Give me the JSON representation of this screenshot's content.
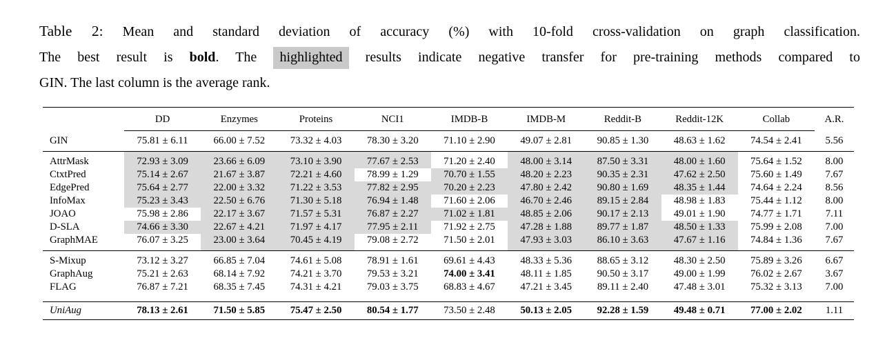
{
  "caption": {
    "lines": [
      [
        {
          "text": "Table 2:",
          "style": "label"
        },
        {
          "text": "  Mean and standard deviation of accuracy (%) with 10-fold cross-validation on graph classification.",
          "style": "normal"
        }
      ],
      [
        {
          "text": "The best result is ",
          "style": "normal"
        },
        {
          "text": "bold",
          "style": "bold"
        },
        {
          "text": ". The ",
          "style": "normal"
        },
        {
          "text": "highlighted",
          "style": "highlight"
        },
        {
          "text": " results indicate negative transfer for pre-training methods compared to",
          "style": "normal"
        }
      ],
      [
        {
          "text": "GIN. The last column is the average rank.",
          "style": "normal"
        }
      ]
    ]
  },
  "colors": {
    "cell_highlight": "#d9d9d9",
    "caption_highlight": "#c9c9c9"
  },
  "table": {
    "columns": [
      "DD",
      "Enzymes",
      "Proteins",
      "NCI1",
      "IMDB-B",
      "IMDB-M",
      "Reddit-B",
      "Reddit-12K",
      "Collab",
      "A.R."
    ],
    "groups": [
      {
        "id": "gin",
        "rows": [
          {
            "name": "GIN",
            "italic": false,
            "ar": "5.56",
            "cells": [
              {
                "v": "75.81 ± 6.11"
              },
              {
                "v": "66.00 ± 7.52"
              },
              {
                "v": "73.32 ± 4.03"
              },
              {
                "v": "78.30 ± 3.20"
              },
              {
                "v": "71.10 ± 2.90"
              },
              {
                "v": "49.07 ± 2.81"
              },
              {
                "v": "90.85 ± 1.30"
              },
              {
                "v": "48.63 ± 1.62"
              },
              {
                "v": "74.54 ± 2.41"
              }
            ]
          }
        ]
      },
      {
        "id": "pretrain",
        "rows": [
          {
            "name": "AttrMask",
            "italic": false,
            "ar": "8.00",
            "cells": [
              {
                "v": "72.93 ± 3.09",
                "hl": true
              },
              {
                "v": "23.66 ± 6.09",
                "hl": true
              },
              {
                "v": "73.10 ± 3.90",
                "hl": true
              },
              {
                "v": "77.67 ± 2.53",
                "hl": true
              },
              {
                "v": "71.20 ± 2.40"
              },
              {
                "v": "48.00 ± 3.14",
                "hl": true
              },
              {
                "v": "87.50 ± 3.31",
                "hl": true
              },
              {
                "v": "48.00 ± 1.60",
                "hl": true
              },
              {
                "v": "75.64 ± 1.52"
              }
            ]
          },
          {
            "name": "CtxtPred",
            "italic": false,
            "ar": "7.67",
            "cells": [
              {
                "v": "75.14 ± 2.67",
                "hl": true
              },
              {
                "v": "21.67 ± 3.87",
                "hl": true
              },
              {
                "v": "72.21 ± 4.60",
                "hl": true
              },
              {
                "v": "78.99 ± 1.29"
              },
              {
                "v": "70.70 ± 1.55",
                "hl": true
              },
              {
                "v": "48.20 ± 2.23",
                "hl": true
              },
              {
                "v": "90.35 ± 2.31",
                "hl": true
              },
              {
                "v": "47.62 ± 2.50",
                "hl": true
              },
              {
                "v": "75.60 ± 1.49"
              }
            ]
          },
          {
            "name": "EdgePred",
            "italic": false,
            "ar": "8.56",
            "cells": [
              {
                "v": "75.64 ± 2.77",
                "hl": true
              },
              {
                "v": "22.00 ± 3.32",
                "hl": true
              },
              {
                "v": "71.22 ± 3.53",
                "hl": true
              },
              {
                "v": "77.82 ± 2.95",
                "hl": true
              },
              {
                "v": "70.20 ± 2.23",
                "hl": true
              },
              {
                "v": "47.80 ± 2.42",
                "hl": true
              },
              {
                "v": "90.80 ± 1.69",
                "hl": true
              },
              {
                "v": "48.35 ± 1.44",
                "hl": true
              },
              {
                "v": "74.64 ± 2.24"
              }
            ]
          },
          {
            "name": "InfoMax",
            "italic": false,
            "ar": "8.00",
            "cells": [
              {
                "v": "75.23 ± 3.43",
                "hl": true
              },
              {
                "v": "22.50 ± 6.76",
                "hl": true
              },
              {
                "v": "71.30 ± 5.18",
                "hl": true
              },
              {
                "v": "76.94 ± 1.48",
                "hl": true
              },
              {
                "v": "71.60 ± 2.06"
              },
              {
                "v": "46.70 ± 2.46",
                "hl": true
              },
              {
                "v": "89.15 ± 2.84",
                "hl": true
              },
              {
                "v": "48.98 ± 1.83"
              },
              {
                "v": "75.44 ± 1.12"
              }
            ]
          },
          {
            "name": "JOAO",
            "italic": false,
            "ar": "7.11",
            "cells": [
              {
                "v": "75.98 ± 2.86"
              },
              {
                "v": "22.17 ± 3.67",
                "hl": true
              },
              {
                "v": "71.57 ± 5.31",
                "hl": true
              },
              {
                "v": "76.87 ± 2.27",
                "hl": true
              },
              {
                "v": "71.02 ± 1.81",
                "hl": true
              },
              {
                "v": "48.85 ± 2.06",
                "hl": true
              },
              {
                "v": "90.17 ± 2.13",
                "hl": true
              },
              {
                "v": "49.01 ± 1.90"
              },
              {
                "v": "74.77 ± 1.71"
              }
            ]
          },
          {
            "name": "D-SLA",
            "italic": false,
            "ar": "7.00",
            "cells": [
              {
                "v": "74.66 ± 3.30",
                "hl": true
              },
              {
                "v": "22.67 ± 4.21",
                "hl": true
              },
              {
                "v": "71.97 ± 4.17",
                "hl": true
              },
              {
                "v": "77.95 ± 2.11",
                "hl": true
              },
              {
                "v": "71.92 ± 2.75"
              },
              {
                "v": "47.28 ± 1.88",
                "hl": true
              },
              {
                "v": "89.77 ± 1.87",
                "hl": true
              },
              {
                "v": "48.50 ± 1.33",
                "hl": true
              },
              {
                "v": "75.99 ± 2.08"
              }
            ]
          },
          {
            "name": "GraphMAE",
            "italic": false,
            "ar": "7.67",
            "cells": [
              {
                "v": "76.07 ± 3.25"
              },
              {
                "v": "23.00 ± 3.64",
                "hl": true
              },
              {
                "v": "70.45 ± 4.19",
                "hl": true
              },
              {
                "v": "79.08 ± 2.72"
              },
              {
                "v": "71.50 ± 2.01"
              },
              {
                "v": "47.93 ± 3.03",
                "hl": true
              },
              {
                "v": "86.10 ± 3.63",
                "hl": true
              },
              {
                "v": "47.67 ± 1.16",
                "hl": true
              },
              {
                "v": "74.84 ± 1.36"
              }
            ]
          }
        ]
      },
      {
        "id": "aug",
        "rows": [
          {
            "name": "S-Mixup",
            "italic": false,
            "ar": "6.67",
            "cells": [
              {
                "v": "73.12 ± 3.27"
              },
              {
                "v": "66.85 ± 7.04"
              },
              {
                "v": "74.61 ± 5.08"
              },
              {
                "v": "78.91 ± 1.61"
              },
              {
                "v": "69.61 ± 4.43"
              },
              {
                "v": "48.33 ± 5.36"
              },
              {
                "v": "88.65 ± 3.12"
              },
              {
                "v": "48.30 ± 2.50"
              },
              {
                "v": "75.89 ± 3.26"
              }
            ]
          },
          {
            "name": "GraphAug",
            "italic": false,
            "ar": "3.67",
            "cells": [
              {
                "v": "75.21 ± 2.63"
              },
              {
                "v": "68.14 ± 7.92"
              },
              {
                "v": "74.21 ± 3.70"
              },
              {
                "v": "79.53 ± 3.21"
              },
              {
                "v": "74.00 ± 3.41",
                "b": true
              },
              {
                "v": "48.11 ± 1.85"
              },
              {
                "v": "90.50 ± 3.17"
              },
              {
                "v": "49.00 ± 1.99"
              },
              {
                "v": "76.02 ± 2.67"
              }
            ]
          },
          {
            "name": "FLAG",
            "italic": false,
            "ar": "7.00",
            "cells": [
              {
                "v": "76.87 ± 7.21"
              },
              {
                "v": "68.35 ± 7.45"
              },
              {
                "v": "74.31 ± 4.21"
              },
              {
                "v": "79.03 ± 3.75"
              },
              {
                "v": "68.83 ± 4.67"
              },
              {
                "v": "47.21 ± 3.45"
              },
              {
                "v": "89.11 ± 2.40"
              },
              {
                "v": "47.48 ± 3.01"
              },
              {
                "v": "75.32 ± 3.13"
              }
            ]
          }
        ]
      },
      {
        "id": "uniaug",
        "rows": [
          {
            "name": "UniAug",
            "italic": true,
            "ar": "1.11",
            "cells": [
              {
                "v": "78.13 ± 2.61",
                "b": true
              },
              {
                "v": "71.50 ± 5.85",
                "b": true
              },
              {
                "v": "75.47 ± 2.50",
                "b": true
              },
              {
                "v": "80.54 ± 1.77",
                "b": true
              },
              {
                "v": "73.50 ± 2.48"
              },
              {
                "v": "50.13 ± 2.05",
                "b": true
              },
              {
                "v": "92.28 ± 1.59",
                "b": true
              },
              {
                "v": "49.48 ± 0.71",
                "b": true
              },
              {
                "v": "77.00 ± 2.02",
                "b": true
              }
            ]
          }
        ]
      }
    ]
  }
}
